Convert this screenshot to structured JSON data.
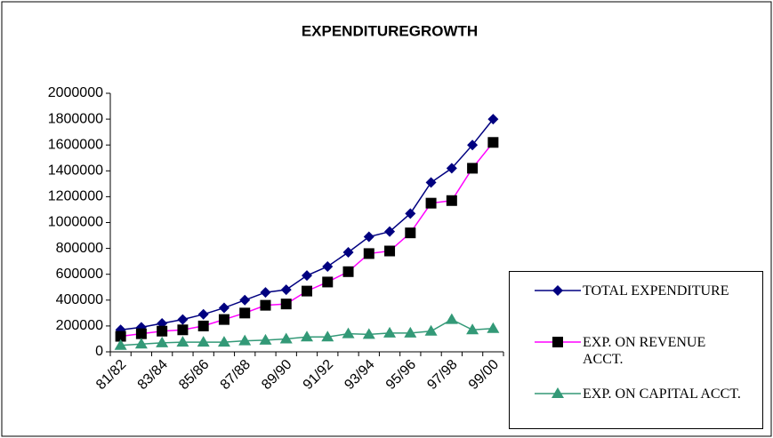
{
  "chart_data": {
    "type": "line",
    "title": "EXPENDITUREGROWTH",
    "categories": [
      "81/82",
      null,
      "83/84",
      null,
      "85/86",
      null,
      "87/88",
      null,
      "89/90",
      null,
      "91/92",
      null,
      "93/94",
      null,
      "95/96",
      null,
      "97/98",
      null,
      "99/00"
    ],
    "series": [
      {
        "name": "TOTAL EXPENDITURE",
        "color": "#000080",
        "marker": "diamond",
        "marker_color": "#000080",
        "values": [
          170000,
          190000,
          220000,
          250000,
          290000,
          340000,
          400000,
          460000,
          480000,
          590000,
          660000,
          770000,
          890000,
          930000,
          1070000,
          1310000,
          1420000,
          1600000,
          1800000
        ]
      },
      {
        "name": "EXP. ON REVENUE ACCT.",
        "color": "#ff00ff",
        "marker": "square",
        "marker_color": "#000000",
        "values": [
          120000,
          140000,
          160000,
          170000,
          200000,
          250000,
          300000,
          360000,
          370000,
          470000,
          540000,
          620000,
          760000,
          780000,
          920000,
          1150000,
          1170000,
          1420000,
          1620000
        ]
      },
      {
        "name": "EXP. ON CAPITAL ACCT.",
        "color": "#339977",
        "marker": "triangle",
        "marker_color": "#339977",
        "values": [
          50000,
          60000,
          70000,
          75000,
          75000,
          75000,
          85000,
          90000,
          100000,
          115000,
          115000,
          140000,
          135000,
          145000,
          145000,
          160000,
          250000,
          170000,
          180000
        ]
      }
    ],
    "ylim": [
      0,
      2000000
    ],
    "yticks": [
      0,
      200000,
      400000,
      600000,
      800000,
      1000000,
      1200000,
      1400000,
      1600000,
      1800000,
      2000000
    ],
    "grid": false,
    "legend": "lower right"
  }
}
